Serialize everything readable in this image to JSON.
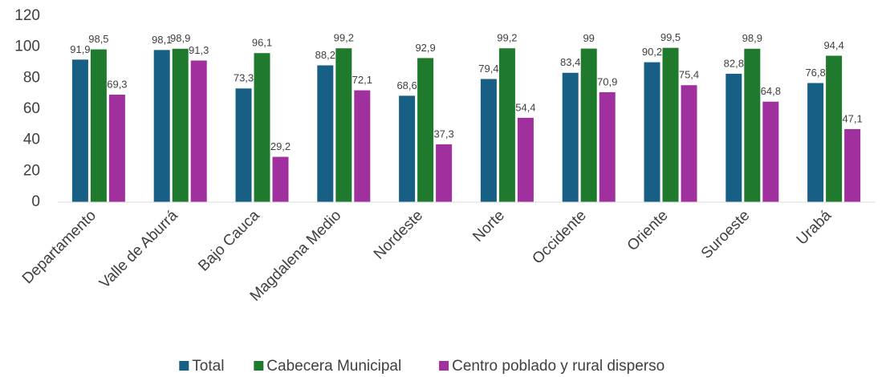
{
  "chart_data": {
    "type": "bar",
    "categories": [
      "Departamento",
      "Valle de Aburrá",
      "Bajo Cauca",
      "Magdalena Medio",
      "Nordeste",
      "Norte",
      "Occidente",
      "Oriente",
      "Suroeste",
      "Urabá"
    ],
    "series": [
      {
        "name": "Total",
        "color": "#175f84",
        "values": [
          91.9,
          98.1,
          73.3,
          88.2,
          68.6,
          79.4,
          83.4,
          90.2,
          82.8,
          76.8
        ],
        "value_labels": [
          "91,9",
          "98,1",
          "73,3",
          "88,2",
          "68,6",
          "79,4",
          "83,4",
          "90,2",
          "82,8",
          "76,8"
        ]
      },
      {
        "name": "Cabecera Municipal",
        "color": "#1f7a2d",
        "values": [
          98.5,
          98.9,
          96.1,
          99.2,
          92.9,
          99.2,
          99,
          99.5,
          98.9,
          94.4
        ],
        "value_labels": [
          "98,5",
          "98,9",
          "96,1",
          "99,2",
          "92,9",
          "99,2",
          "99",
          "99,5",
          "98,9",
          "94,4"
        ]
      },
      {
        "name": "Centro poblado y rural disperso",
        "color": "#a1309f",
        "values": [
          69.3,
          91.3,
          29.2,
          72.1,
          37.3,
          54.4,
          70.9,
          75.4,
          64.8,
          47.1
        ],
        "value_labels": [
          "69,3",
          "91,3",
          "29,2",
          "72,1",
          "37,3",
          "54,4",
          "70,9",
          "75,4",
          "64,8",
          "47,1"
        ]
      }
    ],
    "ylim": [
      0,
      120
    ],
    "yticks": [
      0,
      20,
      40,
      60,
      80,
      100,
      120
    ],
    "grid": false,
    "legend": "bottom"
  }
}
